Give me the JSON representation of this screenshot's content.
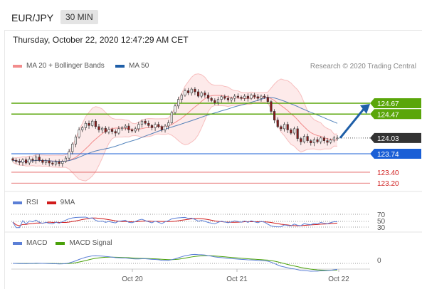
{
  "header": {
    "pair": "EUR/JPY",
    "timeframe": "30 MIN",
    "datetime": "Thursday, October 22, 2020 12:47:29 AM CET"
  },
  "legend": {
    "bollinger_label": "MA 20 + Bollinger Bands",
    "ma50_label": "MA 50",
    "credit": "Research © 2020 Trading Central"
  },
  "colors": {
    "bollinger": "#f28c8c",
    "ma50": "#1f5fa8",
    "resistance": "#5aa60a",
    "support_blue": "#1a5fd6",
    "support_red": "#e05050",
    "current": "#333333",
    "rsi": "#5b7fd6",
    "rsi_ma": "#d11b1b",
    "macd": "#5b7fd6",
    "macd_signal": "#4aa10a"
  },
  "price_levels": [
    {
      "label": "124.67",
      "price": 124.67,
      "style": "resistance"
    },
    {
      "label": "124.47",
      "price": 124.47,
      "style": "resistance"
    },
    {
      "label": "124.03",
      "price": 124.03,
      "style": "current"
    },
    {
      "label": "123.74",
      "price": 123.74,
      "style": "support_blue"
    },
    {
      "label": "123.40",
      "price": 123.4,
      "style": "support_red"
    },
    {
      "label": "123.20",
      "price": 123.2,
      "style": "support_red"
    }
  ],
  "rsi": {
    "label": "RSI",
    "ma_label": "9MA",
    "levels": [
      "70",
      "50",
      "30"
    ]
  },
  "macd": {
    "label": "MACD",
    "signal_label": "MACD Signal",
    "zero_label": "0"
  },
  "x_axis": {
    "ticks": [
      "Oct 20",
      "Oct 21",
      "Oct 22"
    ]
  },
  "chart_data": {
    "type": "candlestick",
    "ylim": [
      123.0,
      125.2
    ],
    "close_series": [
      123.62,
      123.6,
      123.58,
      123.63,
      123.57,
      123.64,
      123.62,
      123.68,
      123.62,
      123.58,
      123.61,
      123.57,
      123.55,
      123.59,
      123.56,
      123.6,
      123.66,
      123.78,
      123.92,
      124.05,
      124.18,
      124.22,
      124.3,
      124.26,
      124.34,
      124.24,
      124.18,
      124.21,
      124.14,
      124.19,
      124.15,
      124.12,
      124.2,
      124.22,
      124.25,
      124.18,
      124.16,
      124.2,
      124.28,
      124.34,
      124.3,
      124.26,
      124.22,
      124.28,
      124.24,
      124.18,
      124.25,
      124.31,
      124.5,
      124.62,
      124.74,
      124.82,
      124.9,
      124.86,
      124.93,
      124.88,
      124.8,
      124.86,
      124.82,
      124.76,
      124.72,
      124.68,
      124.74,
      124.79,
      124.76,
      124.73,
      124.76,
      124.8,
      124.78,
      124.76,
      124.8,
      124.76,
      124.82,
      124.79,
      124.76,
      124.8,
      124.78,
      124.7,
      124.52,
      124.36,
      124.24,
      124.2,
      124.28,
      124.18,
      124.12,
      124.2,
      124.02,
      123.96,
      124.06,
      123.98,
      123.94,
      124.0,
      123.96,
      124.03,
      123.98,
      123.95,
      123.99,
      124.03,
      124.03
    ]
  }
}
